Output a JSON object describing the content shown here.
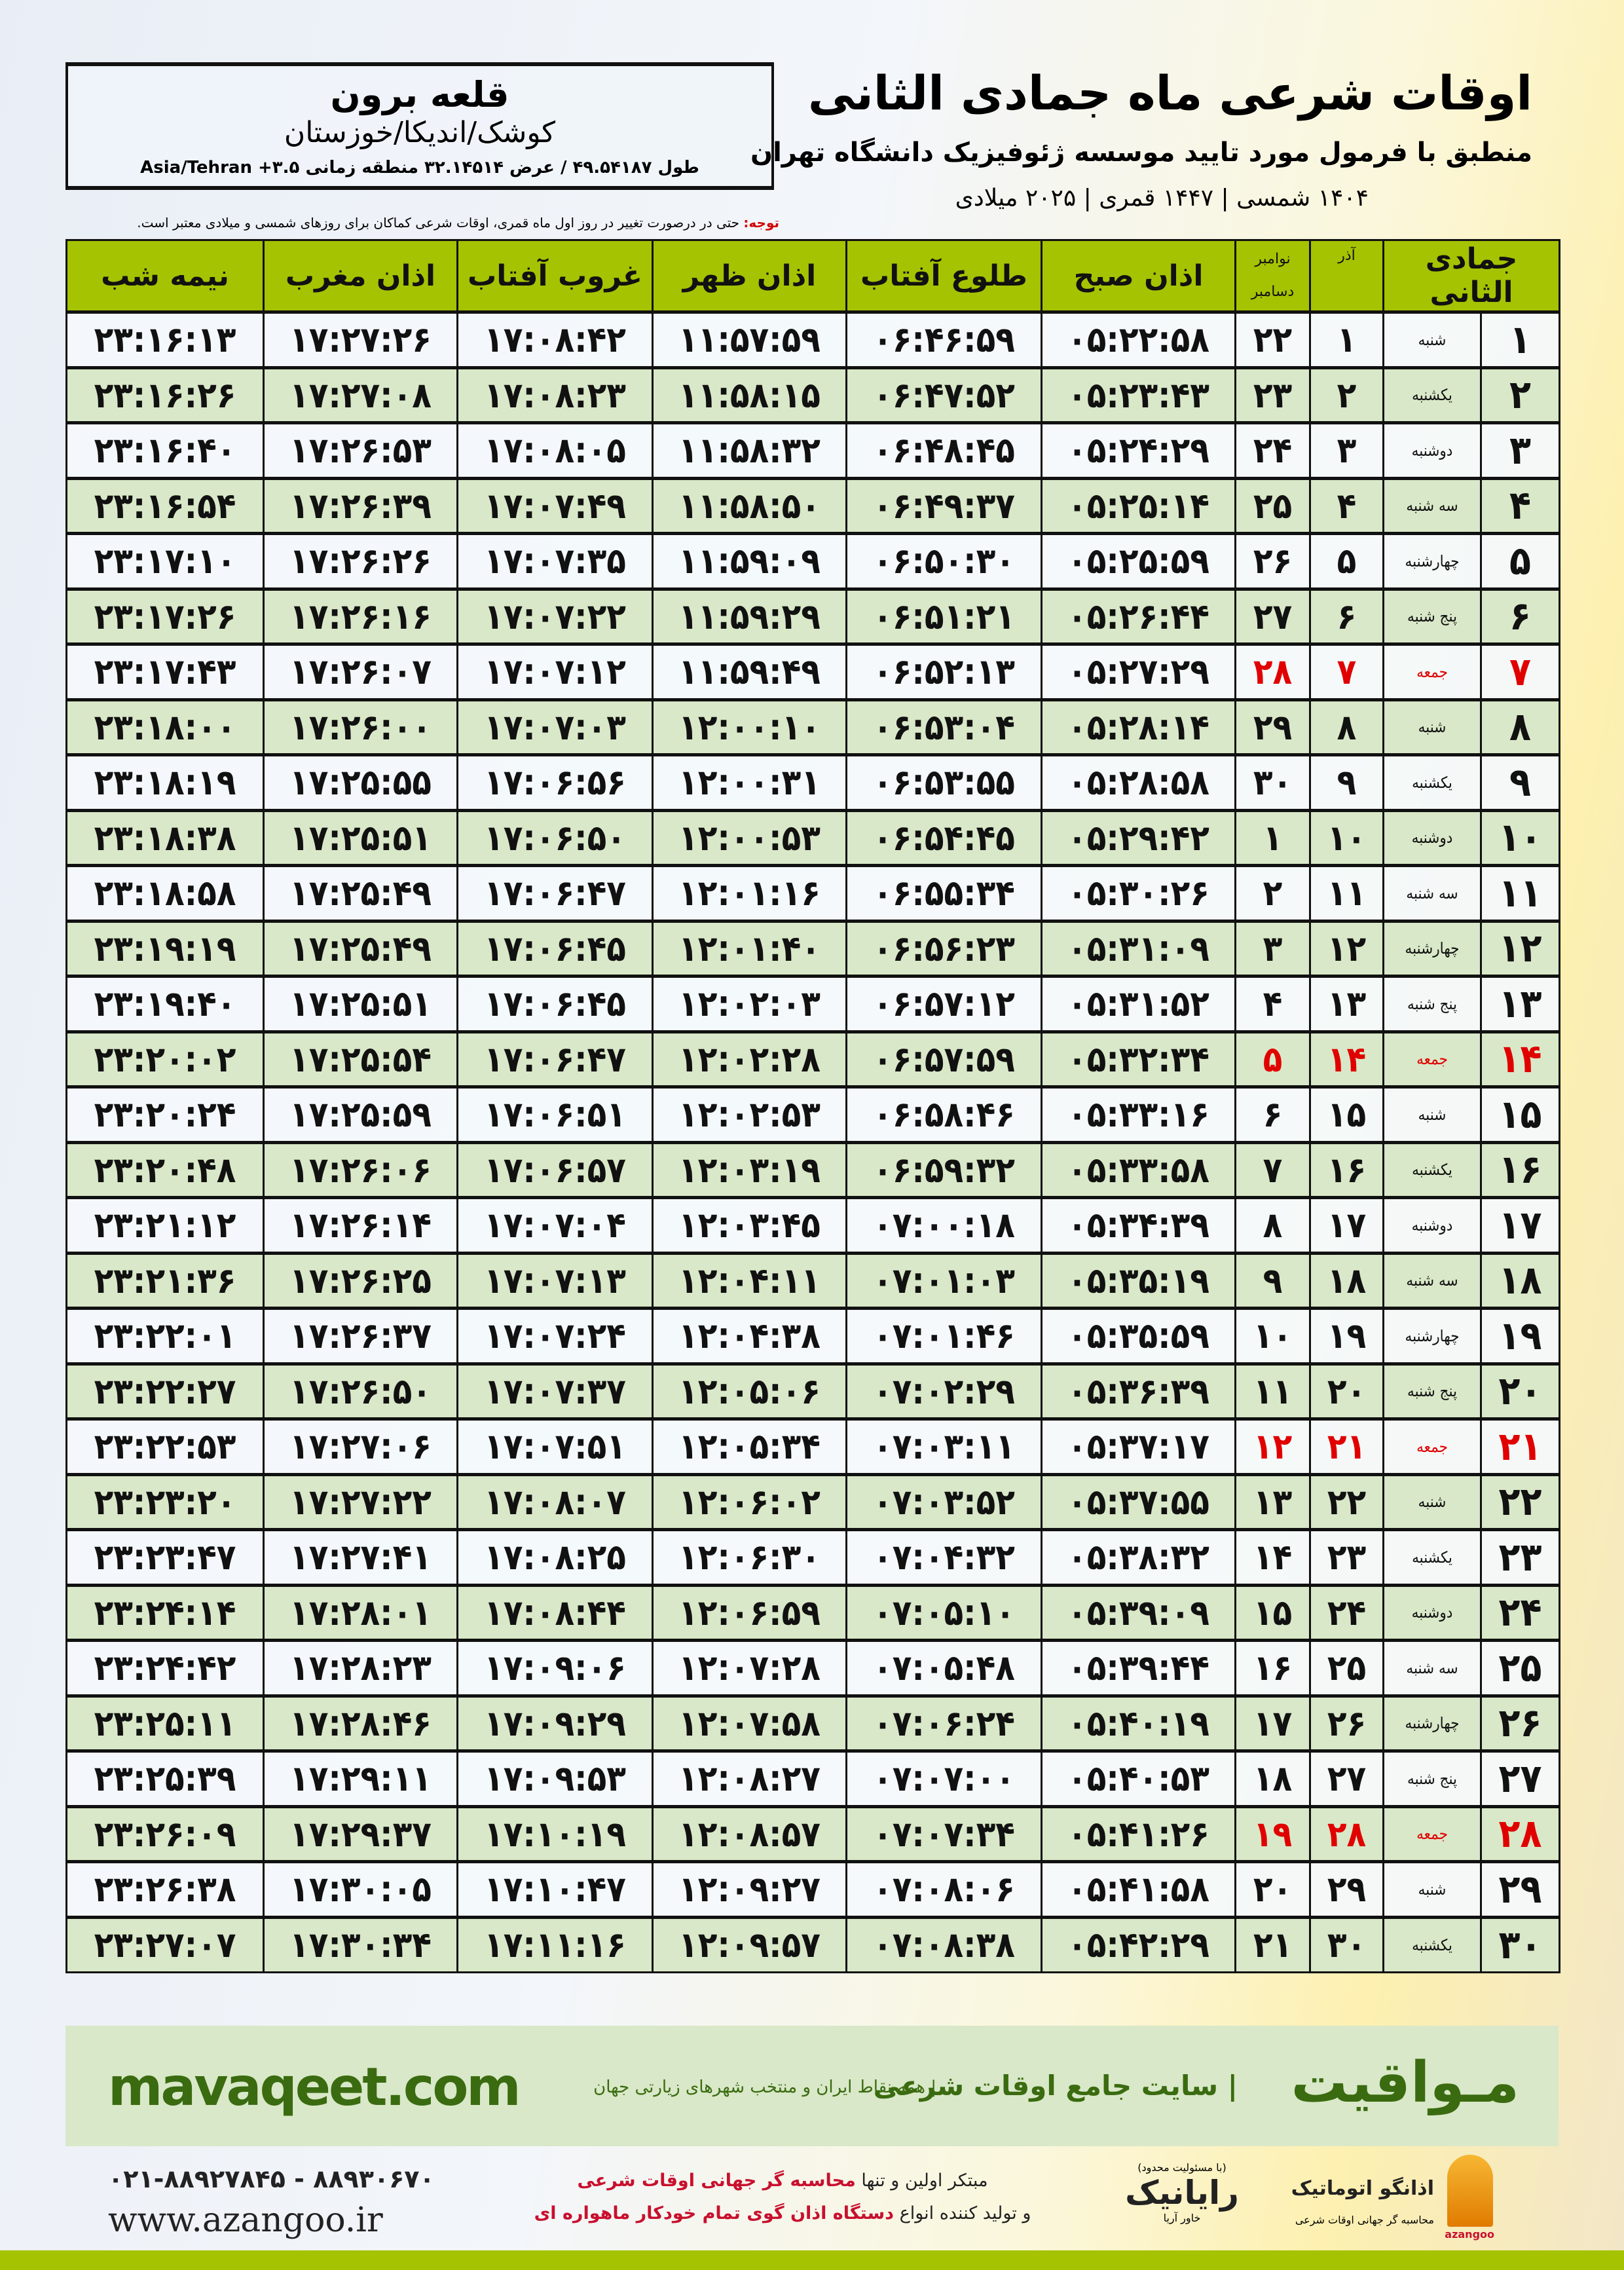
{
  "header": {
    "title": "اوقات شرعی ماه جمادی الثانی",
    "subtitle": "منطبق با فرمول مورد تایید موسسه ژئوفیزیک دانشگاه تهران",
    "years": "۱۴۰۴ شمسی | ۱۴۴۷ قمری | ۲۰۲۵ میلادی"
  },
  "location": {
    "name": "قلعه برون",
    "region": "کوشک/اندیکا/خوزستان",
    "coords": "طول ۴۹.۵۴۱۸۷ / عرض ۳۲.۱۴۵۱۴ منطقه زمانی ۳.۵+ Asia/Tehran"
  },
  "notice": {
    "label": "توجه:",
    "text": " حتی در درصورت تغییر در روز اول ماه قمری، اوقات شرعی کماکان برای روزهای شمسی و میلادی معتبر است."
  },
  "colors": {
    "header_green": "#a5c300",
    "row_green": "#d9e8c8",
    "holiday_red": "#e00000",
    "brand_green": "#3a6b10"
  },
  "table": {
    "headers": {
      "month": "جمادی الثانی",
      "azar": "آذر",
      "nov": "نوامبر",
      "dec": "دسامبر",
      "fajr": "اذان صبح",
      "sunrise": "طلوع آفتاب",
      "dhuhr": "اذان ظهر",
      "sunset": "غروب آفتاب",
      "maghrib": "اذان مغرب",
      "midnight": "نیمه شب"
    },
    "rows": [
      {
        "day": "۱",
        "weekday": "شنبه",
        "azar": "۱",
        "greg": "۲۲",
        "fajr": "۰۵:۲۲:۵۸",
        "sunrise": "۰۶:۴۶:۵۹",
        "dhuhr": "۱۱:۵۷:۵۹",
        "sunset": "۱۷:۰۸:۴۲",
        "maghrib": "۱۷:۲۷:۲۶",
        "midnight": "۲۳:۱۶:۱۳",
        "holiday": false
      },
      {
        "day": "۲",
        "weekday": "یکشنبه",
        "azar": "۲",
        "greg": "۲۳",
        "fajr": "۰۵:۲۳:۴۳",
        "sunrise": "۰۶:۴۷:۵۲",
        "dhuhr": "۱۱:۵۸:۱۵",
        "sunset": "۱۷:۰۸:۲۳",
        "maghrib": "۱۷:۲۷:۰۸",
        "midnight": "۲۳:۱۶:۲۶",
        "holiday": false
      },
      {
        "day": "۳",
        "weekday": "دوشنبه",
        "azar": "۳",
        "greg": "۲۴",
        "fajr": "۰۵:۲۴:۲۹",
        "sunrise": "۰۶:۴۸:۴۵",
        "dhuhr": "۱۱:۵۸:۳۲",
        "sunset": "۱۷:۰۸:۰۵",
        "maghrib": "۱۷:۲۶:۵۳",
        "midnight": "۲۳:۱۶:۴۰",
        "holiday": false
      },
      {
        "day": "۴",
        "weekday": "سه شنبه",
        "azar": "۴",
        "greg": "۲۵",
        "fajr": "۰۵:۲۵:۱۴",
        "sunrise": "۰۶:۴۹:۳۷",
        "dhuhr": "۱۱:۵۸:۵۰",
        "sunset": "۱۷:۰۷:۴۹",
        "maghrib": "۱۷:۲۶:۳۹",
        "midnight": "۲۳:۱۶:۵۴",
        "holiday": false
      },
      {
        "day": "۵",
        "weekday": "چهارشنبه",
        "azar": "۵",
        "greg": "۲۶",
        "fajr": "۰۵:۲۵:۵۹",
        "sunrise": "۰۶:۵۰:۳۰",
        "dhuhr": "۱۱:۵۹:۰۹",
        "sunset": "۱۷:۰۷:۳۵",
        "maghrib": "۱۷:۲۶:۲۶",
        "midnight": "۲۳:۱۷:۱۰",
        "holiday": false
      },
      {
        "day": "۶",
        "weekday": "پنج شنبه",
        "azar": "۶",
        "greg": "۲۷",
        "fajr": "۰۵:۲۶:۴۴",
        "sunrise": "۰۶:۵۱:۲۱",
        "dhuhr": "۱۱:۵۹:۲۹",
        "sunset": "۱۷:۰۷:۲۲",
        "maghrib": "۱۷:۲۶:۱۶",
        "midnight": "۲۳:۱۷:۲۶",
        "holiday": false
      },
      {
        "day": "۷",
        "weekday": "جمعه",
        "azar": "۷",
        "greg": "۲۸",
        "fajr": "۰۵:۲۷:۲۹",
        "sunrise": "۰۶:۵۲:۱۳",
        "dhuhr": "۱۱:۵۹:۴۹",
        "sunset": "۱۷:۰۷:۱۲",
        "maghrib": "۱۷:۲۶:۰۷",
        "midnight": "۲۳:۱۷:۴۳",
        "holiday": true
      },
      {
        "day": "۸",
        "weekday": "شنبه",
        "azar": "۸",
        "greg": "۲۹",
        "fajr": "۰۵:۲۸:۱۴",
        "sunrise": "۰۶:۵۳:۰۴",
        "dhuhr": "۱۲:۰۰:۱۰",
        "sunset": "۱۷:۰۷:۰۳",
        "maghrib": "۱۷:۲۶:۰۰",
        "midnight": "۲۳:۱۸:۰۰",
        "holiday": false
      },
      {
        "day": "۹",
        "weekday": "یکشنبه",
        "azar": "۹",
        "greg": "۳۰",
        "fajr": "۰۵:۲۸:۵۸",
        "sunrise": "۰۶:۵۳:۵۵",
        "dhuhr": "۱۲:۰۰:۳۱",
        "sunset": "۱۷:۰۶:۵۶",
        "maghrib": "۱۷:۲۵:۵۵",
        "midnight": "۲۳:۱۸:۱۹",
        "holiday": false
      },
      {
        "day": "۱۰",
        "weekday": "دوشنبه",
        "azar": "۱۰",
        "greg": "۱",
        "fajr": "۰۵:۲۹:۴۲",
        "sunrise": "۰۶:۵۴:۴۵",
        "dhuhr": "۱۲:۰۰:۵۳",
        "sunset": "۱۷:۰۶:۵۰",
        "maghrib": "۱۷:۲۵:۵۱",
        "midnight": "۲۳:۱۸:۳۸",
        "holiday": false
      },
      {
        "day": "۱۱",
        "weekday": "سه شنبه",
        "azar": "۱۱",
        "greg": "۲",
        "fajr": "۰۵:۳۰:۲۶",
        "sunrise": "۰۶:۵۵:۳۴",
        "dhuhr": "۱۲:۰۱:۱۶",
        "sunset": "۱۷:۰۶:۴۷",
        "maghrib": "۱۷:۲۵:۴۹",
        "midnight": "۲۳:۱۸:۵۸",
        "holiday": false
      },
      {
        "day": "۱۲",
        "weekday": "چهارشنبه",
        "azar": "۱۲",
        "greg": "۳",
        "fajr": "۰۵:۳۱:۰۹",
        "sunrise": "۰۶:۵۶:۲۳",
        "dhuhr": "۱۲:۰۱:۴۰",
        "sunset": "۱۷:۰۶:۴۵",
        "maghrib": "۱۷:۲۵:۴۹",
        "midnight": "۲۳:۱۹:۱۹",
        "holiday": false
      },
      {
        "day": "۱۳",
        "weekday": "پنج شنبه",
        "azar": "۱۳",
        "greg": "۴",
        "fajr": "۰۵:۳۱:۵۲",
        "sunrise": "۰۶:۵۷:۱۲",
        "dhuhr": "۱۲:۰۲:۰۳",
        "sunset": "۱۷:۰۶:۴۵",
        "maghrib": "۱۷:۲۵:۵۱",
        "midnight": "۲۳:۱۹:۴۰",
        "holiday": false
      },
      {
        "day": "۱۴",
        "weekday": "جمعه",
        "azar": "۱۴",
        "greg": "۵",
        "fajr": "۰۵:۳۲:۳۴",
        "sunrise": "۰۶:۵۷:۵۹",
        "dhuhr": "۱۲:۰۲:۲۸",
        "sunset": "۱۷:۰۶:۴۷",
        "maghrib": "۱۷:۲۵:۵۴",
        "midnight": "۲۳:۲۰:۰۲",
        "holiday": true
      },
      {
        "day": "۱۵",
        "weekday": "شنبه",
        "azar": "۱۵",
        "greg": "۶",
        "fajr": "۰۵:۳۳:۱۶",
        "sunrise": "۰۶:۵۸:۴۶",
        "dhuhr": "۱۲:۰۲:۵۳",
        "sunset": "۱۷:۰۶:۵۱",
        "maghrib": "۱۷:۲۵:۵۹",
        "midnight": "۲۳:۲۰:۲۴",
        "holiday": false
      },
      {
        "day": "۱۶",
        "weekday": "یکشنبه",
        "azar": "۱۶",
        "greg": "۷",
        "fajr": "۰۵:۳۳:۵۸",
        "sunrise": "۰۶:۵۹:۳۲",
        "dhuhr": "۱۲:۰۳:۱۹",
        "sunset": "۱۷:۰۶:۵۷",
        "maghrib": "۱۷:۲۶:۰۶",
        "midnight": "۲۳:۲۰:۴۸",
        "holiday": false
      },
      {
        "day": "۱۷",
        "weekday": "دوشنبه",
        "azar": "۱۷",
        "greg": "۸",
        "fajr": "۰۵:۳۴:۳۹",
        "sunrise": "۰۷:۰۰:۱۸",
        "dhuhr": "۱۲:۰۳:۴۵",
        "sunset": "۱۷:۰۷:۰۴",
        "maghrib": "۱۷:۲۶:۱۴",
        "midnight": "۲۳:۲۱:۱۲",
        "holiday": false
      },
      {
        "day": "۱۸",
        "weekday": "سه شنبه",
        "azar": "۱۸",
        "greg": "۹",
        "fajr": "۰۵:۳۵:۱۹",
        "sunrise": "۰۷:۰۱:۰۳",
        "dhuhr": "۱۲:۰۴:۱۱",
        "sunset": "۱۷:۰۷:۱۳",
        "maghrib": "۱۷:۲۶:۲۵",
        "midnight": "۲۳:۲۱:۳۶",
        "holiday": false
      },
      {
        "day": "۱۹",
        "weekday": "چهارشنبه",
        "azar": "۱۹",
        "greg": "۱۰",
        "fajr": "۰۵:۳۵:۵۹",
        "sunrise": "۰۷:۰۱:۴۶",
        "dhuhr": "۱۲:۰۴:۳۸",
        "sunset": "۱۷:۰۷:۲۴",
        "maghrib": "۱۷:۲۶:۳۷",
        "midnight": "۲۳:۲۲:۰۱",
        "holiday": false
      },
      {
        "day": "۲۰",
        "weekday": "پنج شنبه",
        "azar": "۲۰",
        "greg": "۱۱",
        "fajr": "۰۵:۳۶:۳۹",
        "sunrise": "۰۷:۰۲:۲۹",
        "dhuhr": "۱۲:۰۵:۰۶",
        "sunset": "۱۷:۰۷:۳۷",
        "maghrib": "۱۷:۲۶:۵۰",
        "midnight": "۲۳:۲۲:۲۷",
        "holiday": false
      },
      {
        "day": "۲۱",
        "weekday": "جمعه",
        "azar": "۲۱",
        "greg": "۱۲",
        "fajr": "۰۵:۳۷:۱۷",
        "sunrise": "۰۷:۰۳:۱۱",
        "dhuhr": "۱۲:۰۵:۳۴",
        "sunset": "۱۷:۰۷:۵۱",
        "maghrib": "۱۷:۲۷:۰۶",
        "midnight": "۲۳:۲۲:۵۳",
        "holiday": true
      },
      {
        "day": "۲۲",
        "weekday": "شنبه",
        "azar": "۲۲",
        "greg": "۱۳",
        "fajr": "۰۵:۳۷:۵۵",
        "sunrise": "۰۷:۰۳:۵۲",
        "dhuhr": "۱۲:۰۶:۰۲",
        "sunset": "۱۷:۰۸:۰۷",
        "maghrib": "۱۷:۲۷:۲۲",
        "midnight": "۲۳:۲۳:۲۰",
        "holiday": false
      },
      {
        "day": "۲۳",
        "weekday": "یکشنبه",
        "azar": "۲۳",
        "greg": "۱۴",
        "fajr": "۰۵:۳۸:۳۲",
        "sunrise": "۰۷:۰۴:۳۲",
        "dhuhr": "۱۲:۰۶:۳۰",
        "sunset": "۱۷:۰۸:۲۵",
        "maghrib": "۱۷:۲۷:۴۱",
        "midnight": "۲۳:۲۳:۴۷",
        "holiday": false
      },
      {
        "day": "۲۴",
        "weekday": "دوشنبه",
        "azar": "۲۴",
        "greg": "۱۵",
        "fajr": "۰۵:۳۹:۰۹",
        "sunrise": "۰۷:۰۵:۱۰",
        "dhuhr": "۱۲:۰۶:۵۹",
        "sunset": "۱۷:۰۸:۴۴",
        "maghrib": "۱۷:۲۸:۰۱",
        "midnight": "۲۳:۲۴:۱۴",
        "holiday": false
      },
      {
        "day": "۲۵",
        "weekday": "سه شنبه",
        "azar": "۲۵",
        "greg": "۱۶",
        "fajr": "۰۵:۳۹:۴۴",
        "sunrise": "۰۷:۰۵:۴۸",
        "dhuhr": "۱۲:۰۷:۲۸",
        "sunset": "۱۷:۰۹:۰۶",
        "maghrib": "۱۷:۲۸:۲۳",
        "midnight": "۲۳:۲۴:۴۲",
        "holiday": false
      },
      {
        "day": "۲۶",
        "weekday": "چهارشنبه",
        "azar": "۲۶",
        "greg": "۱۷",
        "fajr": "۰۵:۴۰:۱۹",
        "sunrise": "۰۷:۰۶:۲۴",
        "dhuhr": "۱۲:۰۷:۵۸",
        "sunset": "۱۷:۰۹:۲۹",
        "maghrib": "۱۷:۲۸:۴۶",
        "midnight": "۲۳:۲۵:۱۱",
        "holiday": false
      },
      {
        "day": "۲۷",
        "weekday": "پنج شنبه",
        "azar": "۲۷",
        "greg": "۱۸",
        "fajr": "۰۵:۴۰:۵۳",
        "sunrise": "۰۷:۰۷:۰۰",
        "dhuhr": "۱۲:۰۸:۲۷",
        "sunset": "۱۷:۰۹:۵۳",
        "maghrib": "۱۷:۲۹:۱۱",
        "midnight": "۲۳:۲۵:۳۹",
        "holiday": false
      },
      {
        "day": "۲۸",
        "weekday": "جمعه",
        "azar": "۲۸",
        "greg": "۱۹",
        "fajr": "۰۵:۴۱:۲۶",
        "sunrise": "۰۷:۰۷:۳۴",
        "dhuhr": "۱۲:۰۸:۵۷",
        "sunset": "۱۷:۱۰:۱۹",
        "maghrib": "۱۷:۲۹:۳۷",
        "midnight": "۲۳:۲۶:۰۹",
        "holiday": true
      },
      {
        "day": "۲۹",
        "weekday": "شنبه",
        "azar": "۲۹",
        "greg": "۲۰",
        "fajr": "۰۵:۴۱:۵۸",
        "sunrise": "۰۷:۰۸:۰۶",
        "dhuhr": "۱۲:۰۹:۲۷",
        "sunset": "۱۷:۱۰:۴۷",
        "maghrib": "۱۷:۳۰:۰۵",
        "midnight": "۲۳:۲۶:۳۸",
        "holiday": false
      },
      {
        "day": "۳۰",
        "weekday": "یکشنبه",
        "azar": "۳۰",
        "greg": "۲۱",
        "fajr": "۰۵:۴۲:۲۹",
        "sunrise": "۰۷:۰۸:۳۸",
        "dhuhr": "۱۲:۰۹:۵۷",
        "sunset": "۱۷:۱۱:۱۶",
        "maghrib": "۱۷:۳۰:۳۴",
        "midnight": "۲۳:۲۷:۰۷",
        "holiday": false
      }
    ]
  },
  "footer": {
    "brand": "مـواقیت",
    "tagline": "| سایت جامع اوقات شرعی",
    "tagline2": "| همه نقاط ایران و منتخب شهرهای زیارتی جهان",
    "site": "mavaqeet.com",
    "phone": "۰۲۱-۸۸۹۲۷۸۴۵ - ۸۸۹۳۰۶۷۰",
    "web": "www.azangoo.ir",
    "promo_line1_a": "مبتکر اولین و تنها ",
    "promo_line1_b": "محاسبه گر جهانی اوقات شرعی",
    "promo_line2_a": "و تولید کننده انواع ",
    "promo_line2_b": "دستگاه اذان گوی تمام خودکار ماهواره ای",
    "rayanik_name": "رایانیک",
    "rayanik_sub": "خاور آریا",
    "rayanik_note": "(با مسئولیت محدود)",
    "azangoo_name": "اذانگو اتوماتیک",
    "azangoo_sub": "محاسبه گر جهانی اوقات شرعی",
    "azangoo_en": "azangoo"
  }
}
